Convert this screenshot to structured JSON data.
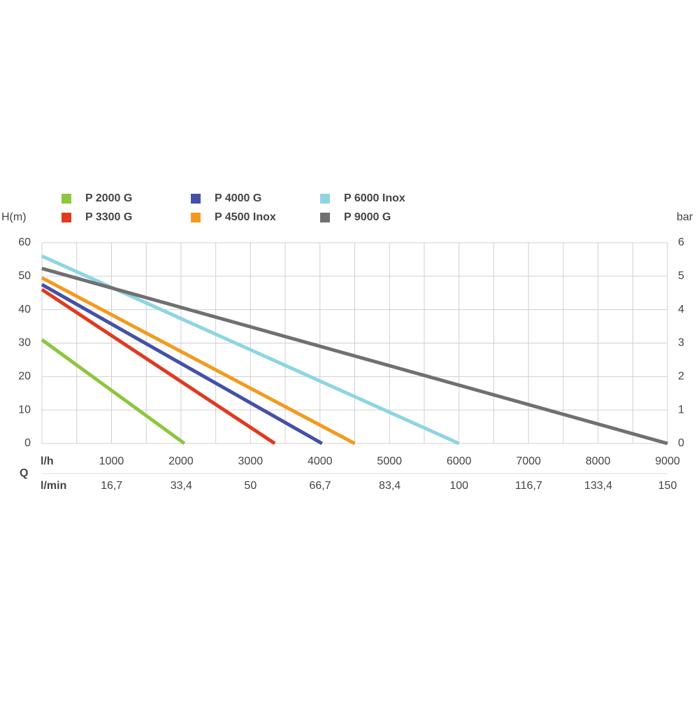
{
  "chart_data": {
    "type": "line",
    "y_label": "H(m)",
    "y2_label": "bar",
    "x_label": "l/h",
    "x2_label": "l/min",
    "q_label": "Q",
    "xlim": [
      0,
      9000
    ],
    "xticks": [
      1000,
      2000,
      3000,
      4000,
      5000,
      6000,
      7000,
      8000,
      9000
    ],
    "xminorticks": [
      500,
      1500,
      2500,
      3500,
      4500,
      5500,
      6500,
      7500,
      8500
    ],
    "x2lim": [
      0,
      150
    ],
    "x2ticks": [
      {
        "value": 16.7,
        "label": "16,7"
      },
      {
        "value": 33.4,
        "label": "33,4"
      },
      50,
      {
        "value": 66.7,
        "label": "66,7"
      },
      {
        "value": 83.4,
        "label": "83,4"
      },
      100,
      {
        "value": 116.7,
        "label": "116,7"
      },
      {
        "value": 133.4,
        "label": "133,4"
      },
      150
    ],
    "ylim": [
      0,
      60
    ],
    "yticks": [
      0,
      10,
      20,
      30,
      40,
      50,
      60
    ],
    "y2lim": [
      0,
      6
    ],
    "y2ticks": [
      0,
      1,
      2,
      3,
      4,
      5,
      6
    ],
    "grid": true,
    "series": [
      {
        "name": "P 2000 G",
        "color": "#8dc63f",
        "x": [
          0,
          2050
        ],
        "values": [
          31,
          0
        ]
      },
      {
        "name": "P 3300 G",
        "color": "#e03a1e",
        "x": [
          0,
          3350
        ],
        "values": [
          46,
          0
        ]
      },
      {
        "name": "P 4000 G",
        "color": "#4450a8",
        "x": [
          0,
          4030
        ],
        "values": [
          47.5,
          0
        ]
      },
      {
        "name": "P 4500 Inox",
        "color": "#f39a1e",
        "x": [
          0,
          4500
        ],
        "values": [
          49.5,
          0
        ]
      },
      {
        "name": "P 6000 Inox",
        "color": "#8dd5e3",
        "x": [
          0,
          6000
        ],
        "values": [
          56,
          0
        ]
      },
      {
        "name": "P 9000 G",
        "color": "#707070",
        "x": [
          0,
          9000
        ],
        "values": [
          52.3,
          0
        ]
      }
    ]
  }
}
